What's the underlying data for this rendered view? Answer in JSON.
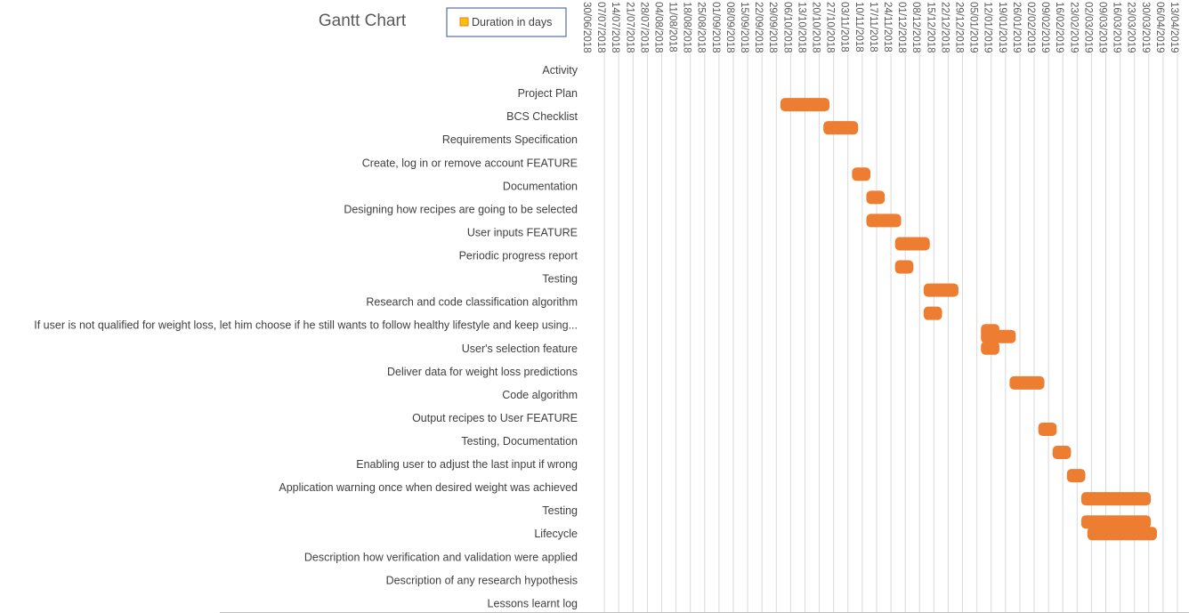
{
  "chart_data": {
    "type": "bar",
    "orientation": "horizontal",
    "stacked": true,
    "title": "Gantt Chart",
    "xlabel": "",
    "ylabel": "",
    "xlim": [
      "30/06/2018",
      "13/04/2019"
    ],
    "x_tick_labels": [
      "30/06/2018",
      "07/07/2018",
      "14/07/2018",
      "21/07/2018",
      "28/07/2018",
      "04/08/2018",
      "11/08/2018",
      "18/08/2018",
      "25/08/2018",
      "01/09/2018",
      "08/09/2018",
      "15/09/2018",
      "22/09/2018",
      "29/09/2018",
      "06/10/2018",
      "13/10/2018",
      "20/10/2018",
      "27/10/2018",
      "03/11/2018",
      "10/11/2018",
      "17/11/2018",
      "24/11/2018",
      "01/12/2018",
      "08/12/2018",
      "15/12/2018",
      "22/12/2018",
      "29/12/2018",
      "05/01/2019",
      "12/01/2019",
      "19/01/2019",
      "26/01/2019",
      "02/02/2019",
      "09/02/2019",
      "16/02/2019",
      "23/02/2019",
      "02/03/2019",
      "09/03/2019",
      "16/03/2019",
      "23/03/2019",
      "30/03/2019",
      "06/04/2019",
      "13/04/2019"
    ],
    "x_axis_position": "top",
    "grid": true,
    "legend": {
      "position": "top",
      "entries": [
        "Duration in days"
      ]
    },
    "series": [
      {
        "name": "Duration in days",
        "color": "#ED7D31"
      }
    ],
    "categories": [
      "Activity",
      "Project Plan",
      "BCS Checklist",
      "Requirements Specification",
      "Create, log in or remove account FEATURE",
      "Documentation",
      "Designing how recipes are going to be selected",
      "User inputs FEATURE",
      "Periodic progress report",
      "Testing",
      "Research and code classification algorithm",
      "If user is not qualified for weight loss, let him choose if he still wants to follow healthy lifestyle and keep using...",
      "User's selection feature",
      "Deliver data for weight loss predictions",
      "Code algorithm",
      "Output recipes to User FEATURE",
      "Testing, Documentation",
      "Enabling user to adjust the last input if wrong",
      "Application warning once when desired weight was achieved",
      "Testing",
      "Lifecycle",
      "Description how verification and validation were applied",
      "Description of any research hypothesis",
      "Lessons learnt log"
    ],
    "bars": [
      {
        "pos": 1.5,
        "start": "01/10/2018",
        "end": "25/10/2018",
        "duration_days": 24
      },
      {
        "pos": 2.5,
        "start": "22/10/2018",
        "end": "08/11/2018",
        "duration_days": 17
      },
      {
        "pos": 4.5,
        "start": "05/11/2018",
        "end": "14/11/2018",
        "duration_days": 9
      },
      {
        "pos": 5.5,
        "start": "12/11/2018",
        "end": "21/11/2018",
        "duration_days": 9
      },
      {
        "pos": 6.5,
        "start": "12/11/2018",
        "end": "29/11/2018",
        "duration_days": 17
      },
      {
        "pos": 7.5,
        "start": "26/11/2018",
        "end": "13/12/2018",
        "duration_days": 17
      },
      {
        "pos": 8.5,
        "start": "26/11/2018",
        "end": "05/12/2018",
        "duration_days": 9
      },
      {
        "pos": 9.5,
        "start": "10/12/2018",
        "end": "27/12/2018",
        "duration_days": 17
      },
      {
        "pos": 10.5,
        "start": "10/12/2018",
        "end": "19/12/2018",
        "duration_days": 9
      },
      {
        "pos": 11.25,
        "start": "07/01/2019",
        "end": "16/01/2019",
        "duration_days": 9
      },
      {
        "pos": 11.5,
        "start": "07/01/2019",
        "end": "24/01/2019",
        "duration_days": 17
      },
      {
        "pos": 12.0,
        "start": "07/01/2019",
        "end": "16/01/2019",
        "duration_days": 9
      },
      {
        "pos": 13.5,
        "start": "21/01/2019",
        "end": "07/02/2019",
        "duration_days": 17
      },
      {
        "pos": 15.5,
        "start": "04/02/2019",
        "end": "13/02/2019",
        "duration_days": 9
      },
      {
        "pos": 16.5,
        "start": "11/02/2019",
        "end": "20/02/2019",
        "duration_days": 9
      },
      {
        "pos": 17.5,
        "start": "18/02/2019",
        "end": "27/02/2019",
        "duration_days": 9
      },
      {
        "pos": 18.5,
        "start": "25/02/2019",
        "end": "31/03/2019",
        "duration_days": 34
      },
      {
        "pos": 19.5,
        "start": "25/02/2019",
        "end": "31/03/2019",
        "duration_days": 34
      },
      {
        "pos": 20.0,
        "start": "28/02/2019",
        "end": "03/04/2019",
        "duration_days": 34
      }
    ]
  }
}
